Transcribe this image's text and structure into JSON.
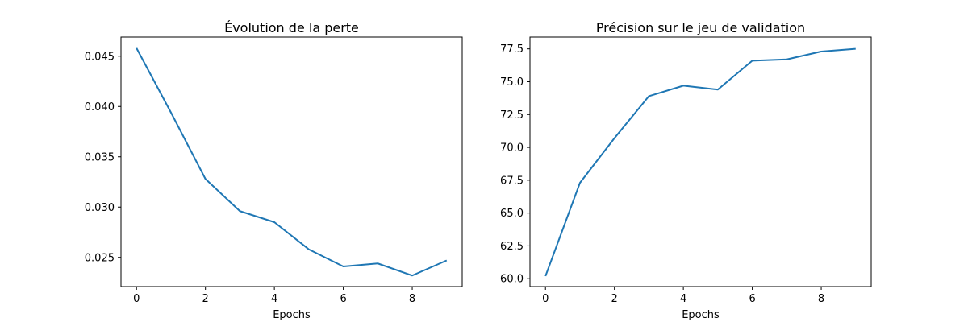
{
  "colors": {
    "series": "#1f77b4",
    "axis": "#000000",
    "background": "#ffffff"
  },
  "chart_data": [
    {
      "type": "line",
      "title": "Évolution de la perte",
      "xlabel": "Epochs",
      "ylabel": "",
      "grid": false,
      "x": [
        0,
        1,
        2,
        3,
        4,
        5,
        6,
        7,
        8,
        9
      ],
      "xlim": [
        -0.45,
        9.45
      ],
      "ylim": [
        0.0221,
        0.0469
      ],
      "xticks": [
        0,
        2,
        4,
        6,
        8
      ],
      "xtick_labels": [
        "0",
        "2",
        "4",
        "6",
        "8"
      ],
      "yticks": [
        0.025,
        0.03,
        0.035,
        0.04,
        0.045
      ],
      "ytick_labels": [
        "0.025",
        "0.030",
        "0.035",
        "0.040",
        "0.045"
      ],
      "series": [
        {
          "values": [
            0.0458,
            0.0394,
            0.0328,
            0.0296,
            0.0285,
            0.0258,
            0.0241,
            0.0244,
            0.0232,
            0.0247
          ]
        }
      ]
    },
    {
      "type": "line",
      "title": "Précision sur le jeu de validation",
      "xlabel": "Epochs",
      "ylabel": "",
      "grid": false,
      "x": [
        0,
        1,
        2,
        3,
        4,
        5,
        6,
        7,
        8,
        9
      ],
      "xlim": [
        -0.45,
        9.45
      ],
      "ylim": [
        59.4,
        78.4
      ],
      "xticks": [
        0,
        2,
        4,
        6,
        8
      ],
      "xtick_labels": [
        "0",
        "2",
        "4",
        "6",
        "8"
      ],
      "yticks": [
        60.0,
        62.5,
        65.0,
        67.5,
        70.0,
        72.5,
        75.0,
        77.5
      ],
      "ytick_labels": [
        "60.0",
        "62.5",
        "65.0",
        "67.5",
        "70.0",
        "72.5",
        "75.0",
        "77.5"
      ],
      "series": [
        {
          "values": [
            60.2,
            67.3,
            70.7,
            73.9,
            74.7,
            74.4,
            76.6,
            76.7,
            77.3,
            77.5
          ]
        }
      ]
    }
  ]
}
